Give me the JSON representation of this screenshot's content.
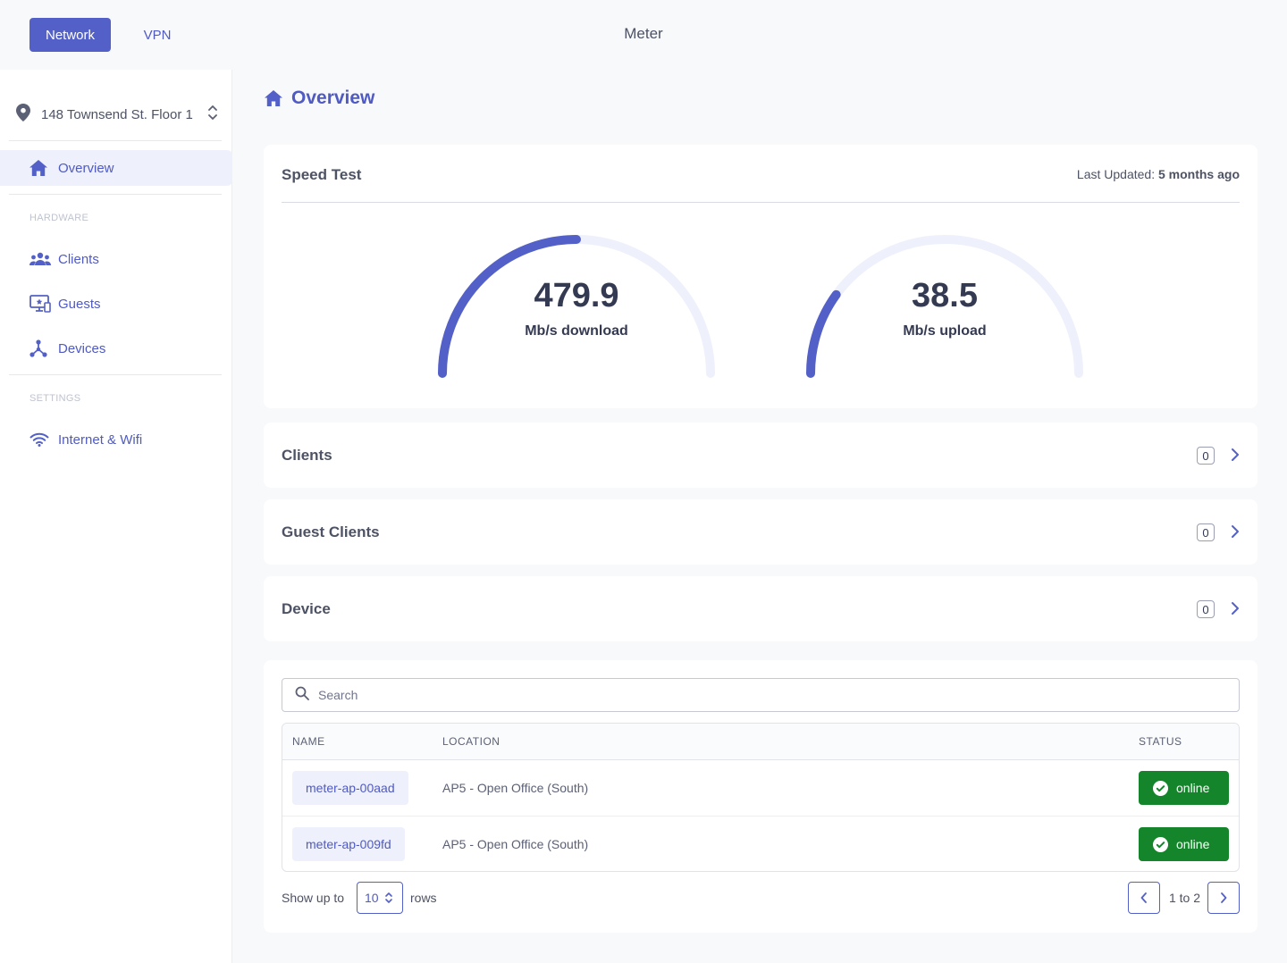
{
  "topbar": {
    "tabs": [
      {
        "label": "Network",
        "active": true
      },
      {
        "label": "VPN",
        "active": false
      }
    ],
    "app_title": "Meter"
  },
  "sidebar": {
    "location": "148 Townsend St. Floor 1",
    "overview": "Overview",
    "hardware_label": "HARDWARE",
    "clients": "Clients",
    "guests": "Guests",
    "devices": "Devices",
    "settings_label": "SETTINGS",
    "internet_wifi": "Internet & Wifi"
  },
  "main": {
    "title": "Overview",
    "speed_test": {
      "title": "Speed Test",
      "last_updated_label": "Last Updated:",
      "last_updated_value": "5 months ago",
      "download": {
        "value": "479.9",
        "unit": "Mb/s download",
        "fraction": 0.5
      },
      "upload": {
        "value": "38.5",
        "unit": "Mb/s upload",
        "fraction": 0.2
      }
    },
    "summary_rows": [
      {
        "title": "Clients",
        "count": "0"
      },
      {
        "title": "Guest Clients",
        "count": "0"
      },
      {
        "title": "Device",
        "count": "0"
      }
    ],
    "table": {
      "search_placeholder": "Search",
      "columns": {
        "name": "NAME",
        "location": "LOCATION",
        "status": "STATUS"
      },
      "rows": [
        {
          "name": "meter-ap-00aad",
          "location": "AP5 - Open Office (South)",
          "status": "online"
        },
        {
          "name": "meter-ap-009fd",
          "location": "AP5 - Open Office (South)",
          "status": "online"
        }
      ],
      "footer": {
        "show_label": "Show up to",
        "rows_value": "10",
        "rows_label": "rows",
        "pager_text": "1 to 2"
      }
    }
  },
  "colors": {
    "accent": "#5360c7",
    "gauge_track": "#eef0fb",
    "status_online": "#14852b"
  }
}
